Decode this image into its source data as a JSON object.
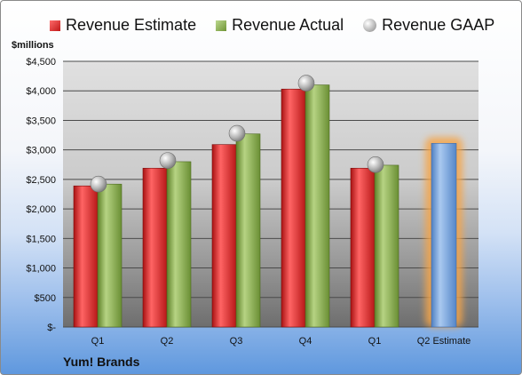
{
  "chart_data": {
    "type": "bar",
    "ylabel": "$millions",
    "company": "Yum! Brands",
    "categories": [
      "Q1",
      "Q2",
      "Q3",
      "Q4",
      "Q1",
      "Q2 Estimate"
    ],
    "y_ticks": [
      "$-",
      "$500",
      "$1,000",
      "$1,500",
      "$2,000",
      "$2,500",
      "$3,000",
      "$3,500",
      "$4,000",
      "$4,500"
    ],
    "ylim": [
      0,
      4500
    ],
    "grid": true,
    "legend_position": "top",
    "series": [
      {
        "name": "Revenue Estimate",
        "color": "#d42424",
        "values": [
          2390,
          2690,
          3090,
          4030,
          2690,
          null
        ]
      },
      {
        "name": "Revenue Actual",
        "color": "#8db04e",
        "values": [
          2420,
          2800,
          3270,
          4100,
          2740,
          null
        ]
      },
      {
        "name": "Revenue GAAP",
        "color": "#b0b0b0",
        "values": [
          2420,
          2820,
          3280,
          4130,
          2750,
          null
        ]
      }
    ],
    "estimate": {
      "category": "Q2 Estimate",
      "value": 3110,
      "color": "#6f9fd8",
      "glow": "#f5a54a"
    }
  }
}
